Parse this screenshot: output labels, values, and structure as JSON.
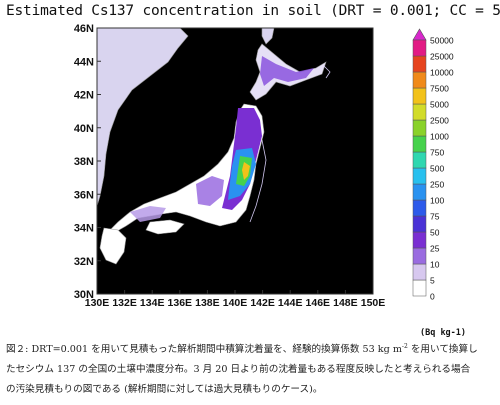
{
  "title": "Estimated Cs137 concentration in soil (DRT = 0.001; CC = 53)",
  "map": {
    "lat_range": [
      30,
      46
    ],
    "lon_range": [
      130,
      150
    ],
    "lat_ticks": [
      "30N",
      "32N",
      "34N",
      "36N",
      "38N",
      "40N",
      "42N",
      "44N",
      "46N"
    ],
    "lon_ticks": [
      "130E",
      "132E",
      "134E",
      "136E",
      "138E",
      "140E",
      "142E",
      "144E",
      "146E",
      "148E",
      "150E"
    ],
    "ocean_color": "#000000",
    "land_color": "#ffffff",
    "coast_color": "#9a9a9a"
  },
  "colorbar": {
    "unit": "(Bq kg-1)",
    "levels": [
      "0",
      "5",
      "10",
      "25",
      "50",
      "75",
      "100",
      "250",
      "500",
      "750",
      "1000",
      "2500",
      "5000",
      "7500",
      "10000",
      "25000",
      "50000"
    ],
    "colors": [
      "#ffffff",
      "#d7c8ef",
      "#9a6ce0",
      "#7a2fd2",
      "#4a32d6",
      "#2d5aea",
      "#2a92f0",
      "#28c0ee",
      "#2fd7b0",
      "#46d24c",
      "#8ad22a",
      "#d2dc2a",
      "#f2c21a",
      "#f08a1a",
      "#e6441e",
      "#e21b84",
      "#d828cc"
    ]
  },
  "caption": {
    "line1": "図２: DRT=0.001 を用いて見積もった解析期間中積算沈着量を、経験的換算係数 53 kg m",
    "sup": "-2",
    "line1_end": " を用いて換算し",
    "line2": "たセシウム 137 の全国の土壌中濃度分布。3 月 20 日より前の沈着量もある程度反映したと考えられる場合",
    "line3": "の汚染見積もりの図である (解析期間に対しては過大見積もりのケース)。"
  }
}
